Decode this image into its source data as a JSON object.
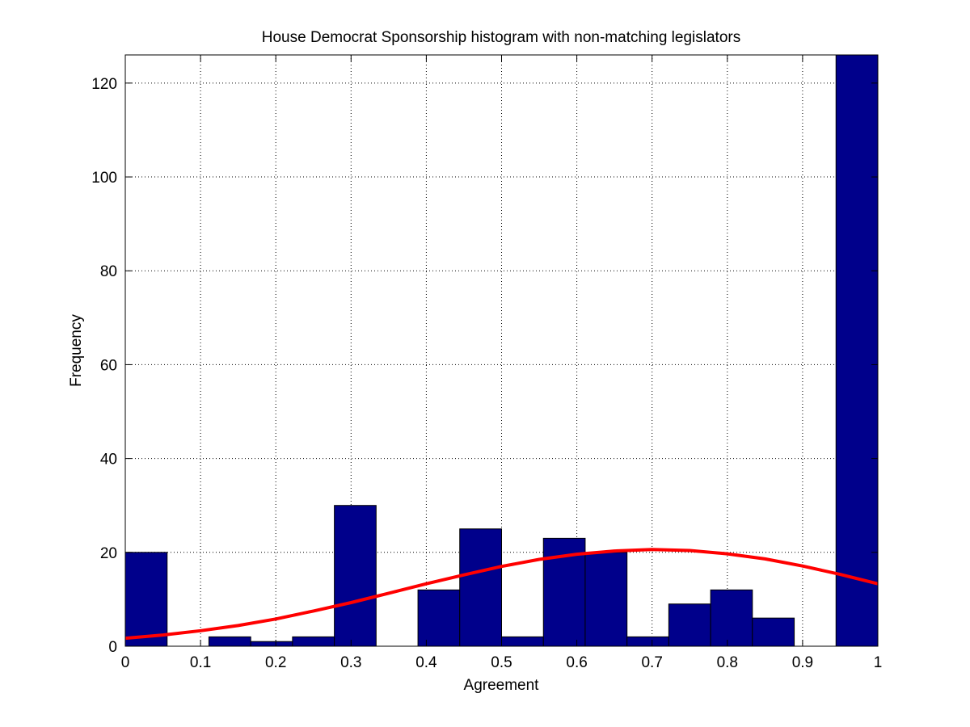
{
  "chart_data": {
    "type": "bar",
    "title": "House Democrat Sponsorship histogram with non-matching legislators",
    "xlabel": "Agreement",
    "ylabel": "Frequency",
    "xlim": [
      0,
      1
    ],
    "ylim": [
      0,
      126
    ],
    "xticks": [
      "0",
      "0.1",
      "0.2",
      "0.3",
      "0.4",
      "0.5",
      "0.6",
      "0.7",
      "0.8",
      "0.9",
      "1"
    ],
    "yticks": [
      "0",
      "20",
      "40",
      "60",
      "80",
      "100",
      "120"
    ],
    "grid": true,
    "bar_color": "#00008B",
    "curve_color": "#FF0000",
    "bin_edges": [
      0,
      0.0556,
      0.1111,
      0.1667,
      0.2222,
      0.2778,
      0.3333,
      0.3889,
      0.4444,
      0.5,
      0.5556,
      0.6111,
      0.6667,
      0.7222,
      0.7778,
      0.8333,
      0.8889,
      0.9444,
      1.0
    ],
    "values": [
      20,
      0,
      2,
      1,
      2,
      30,
      0,
      12,
      25,
      2,
      23,
      20,
      2,
      9,
      12,
      6,
      0,
      126
    ],
    "series": [
      {
        "type": "line",
        "x": [
          0,
          0.05,
          0.1,
          0.15,
          0.2,
          0.25,
          0.3,
          0.35,
          0.4,
          0.45,
          0.5,
          0.55,
          0.6,
          0.65,
          0.7,
          0.75,
          0.8,
          0.85,
          0.9,
          0.95,
          1.0
        ],
        "y": [
          1.7,
          2.4,
          3.3,
          4.4,
          5.8,
          7.5,
          9.3,
          11.3,
          13.3,
          15.2,
          17.0,
          18.5,
          19.6,
          20.3,
          20.6,
          20.4,
          19.7,
          18.6,
          17.1,
          15.3,
          13.3
        ]
      }
    ]
  }
}
